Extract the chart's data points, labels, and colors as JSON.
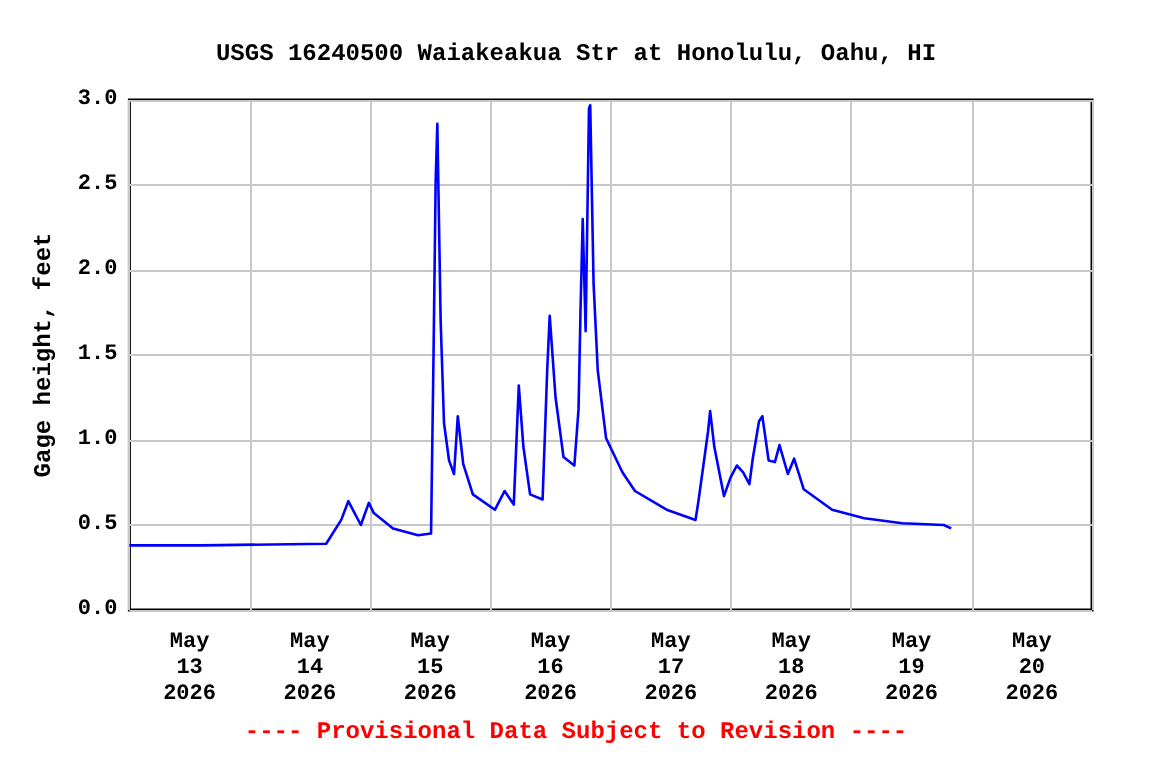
{
  "chart_data": {
    "type": "line",
    "title": "USGS 16240500 Waiakeakua Str at Honolulu, Oahu, HI",
    "ylabel": "Gage height, feet",
    "annotations": [
      "---- Provisional Data Subject to Revision ----"
    ],
    "x": [
      "2026-05-13T00:00",
      "2026-05-13T14:30",
      "2026-05-14T15:15",
      "2026-05-14T18:15",
      "2026-05-14T19:40",
      "2026-05-14T22:10",
      "2026-05-14T23:45",
      "2026-05-15T00:45",
      "2026-05-15T04:35",
      "2026-05-15T09:35",
      "2026-05-15T12:10",
      "2026-05-15T12:40",
      "2026-05-15T13:05",
      "2026-05-15T13:25",
      "2026-05-15T14:05",
      "2026-05-15T14:45",
      "2026-05-15T15:45",
      "2026-05-15T16:45",
      "2026-05-15T17:30",
      "2026-05-15T18:35",
      "2026-05-15T20:30",
      "2026-05-16T00:55",
      "2026-05-16T02:50",
      "2026-05-16T04:40",
      "2026-05-16T05:40",
      "2026-05-16T06:35",
      "2026-05-16T07:55",
      "2026-05-16T10:25",
      "2026-05-16T11:20",
      "2026-05-16T11:50",
      "2026-05-16T13:00",
      "2026-05-16T14:35",
      "2026-05-16T16:45",
      "2026-05-16T17:35",
      "2026-05-16T18:00",
      "2026-05-16T18:25",
      "2026-05-16T19:00",
      "2026-05-16T19:40",
      "2026-05-16T19:55",
      "2026-05-16T20:35",
      "2026-05-16T21:25",
      "2026-05-16T23:05",
      "2026-05-17T02:20",
      "2026-05-17T04:50",
      "2026-05-17T11:10",
      "2026-05-17T16:55",
      "2026-05-17T17:30",
      "2026-05-17T19:25",
      "2026-05-17T19:50",
      "2026-05-17T20:40",
      "2026-05-17T22:35",
      "2026-05-17T23:55",
      "2026-05-18T01:10",
      "2026-05-18T02:25",
      "2026-05-18T03:40",
      "2026-05-18T04:20",
      "2026-05-18T05:35",
      "2026-05-18T06:15",
      "2026-05-18T07:30",
      "2026-05-18T08:45",
      "2026-05-18T09:40",
      "2026-05-18T11:20",
      "2026-05-18T12:35",
      "2026-05-18T14:30",
      "2026-05-18T20:10",
      "2026-05-19T02:35",
      "2026-05-19T10:10",
      "2026-05-19T18:25",
      "2026-05-19T19:55"
    ],
    "series": [
      {
        "color": "#0000ff",
        "values": [
          0.38,
          0.38,
          0.39,
          0.53,
          0.64,
          0.5,
          0.63,
          0.57,
          0.48,
          0.44,
          0.45,
          1.51,
          2.52,
          2.86,
          1.7,
          1.1,
          0.88,
          0.8,
          1.14,
          0.86,
          0.68,
          0.59,
          0.7,
          0.62,
          1.32,
          0.96,
          0.68,
          0.65,
          1.41,
          1.73,
          1.25,
          0.9,
          0.85,
          1.18,
          1.79,
          2.3,
          1.64,
          2.95,
          2.97,
          1.92,
          1.41,
          1.01,
          0.81,
          0.7,
          0.59,
          0.53,
          0.64,
          1.05,
          1.17,
          0.96,
          0.67,
          0.78,
          0.85,
          0.81,
          0.74,
          0.89,
          1.11,
          1.14,
          0.88,
          0.87,
          0.97,
          0.8,
          0.89,
          0.71,
          0.59,
          0.54,
          0.51,
          0.5,
          0.48
        ]
      }
    ],
    "xlim": [
      "2026-05-13T00:00",
      "2026-05-21T00:00"
    ],
    "xticks": [
      {
        "value": "2026-05-13T00:00",
        "label": null
      },
      {
        "value": "2026-05-14T00:00",
        "label": null
      },
      {
        "value": "2026-05-15T00:00",
        "label": null
      },
      {
        "value": "2026-05-16T00:00",
        "label": null
      },
      {
        "value": "2026-05-17T00:00",
        "label": null
      },
      {
        "value": "2026-05-18T00:00",
        "label": null
      },
      {
        "value": "2026-05-19T00:00",
        "label": null
      },
      {
        "value": "2026-05-20T00:00",
        "label": null
      },
      {
        "value": "2026-05-21T00:00",
        "label": null
      },
      {
        "value": "2026-05-13T12:00",
        "label": "May\n13\n2026"
      },
      {
        "value": "2026-05-14T12:00",
        "label": "May\n14\n2026"
      },
      {
        "value": "2026-05-15T12:00",
        "label": "May\n15\n2026"
      },
      {
        "value": "2026-05-16T12:00",
        "label": "May\n16\n2026"
      },
      {
        "value": "2026-05-17T12:00",
        "label": "May\n17\n2026"
      },
      {
        "value": "2026-05-18T12:00",
        "label": "May\n18\n2026"
      },
      {
        "value": "2026-05-19T12:00",
        "label": "May\n19\n2026"
      },
      {
        "value": "2026-05-20T12:00",
        "label": "May\n20\n2026"
      }
    ],
    "ylim": [
      0,
      3.0
    ],
    "yticks": [
      {
        "value": 0,
        "label": "0.0"
      },
      {
        "value": 0.5,
        "label": "0.5"
      },
      {
        "value": 1,
        "label": "1.0"
      },
      {
        "value": 1.5,
        "label": "1.5"
      },
      {
        "value": 2,
        "label": "2.0"
      },
      {
        "value": 2.5,
        "label": "2.5"
      },
      {
        "value": 3,
        "label": "3.0"
      }
    ],
    "grid": true,
    "marker": "none",
    "line_style": "solid"
  }
}
